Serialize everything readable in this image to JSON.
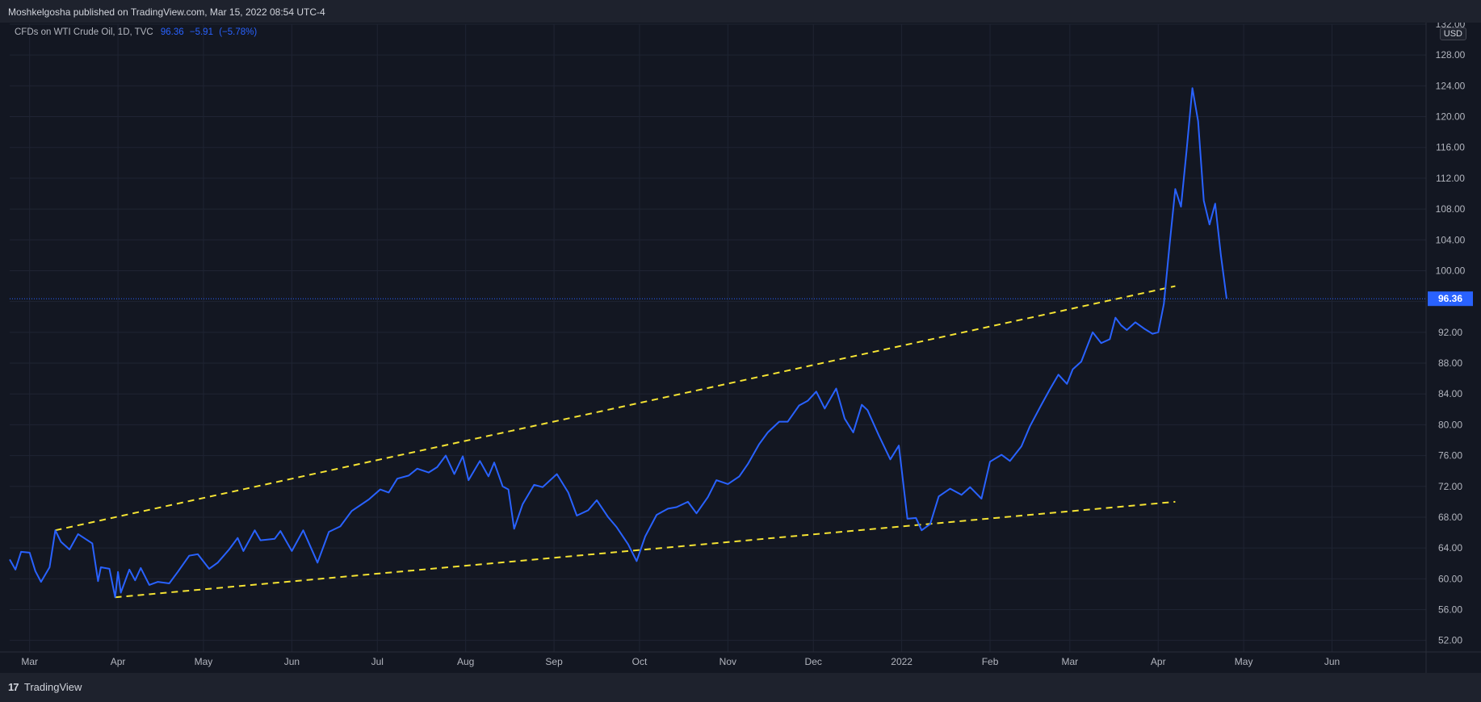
{
  "header": {
    "published_line": "Moshkelgosha published on TradingView.com, Mar 15, 2022 08:54 UTC-4"
  },
  "legend": {
    "symbol": "CFDs on WTI Crude Oil, 1D, TVC",
    "last": "96.36",
    "change": "−5.91",
    "change_pct": "(−5.78%)"
  },
  "currency": "USD",
  "footer": {
    "brand": "TradingView",
    "logo": "17"
  },
  "colors": {
    "line": "#2962ff",
    "trendline": "#f5e333",
    "price_label_bg": "#2962ff"
  },
  "chart_data": {
    "type": "line",
    "title": "CFDs on WTI Crude Oil, 1D, TVC",
    "ylabel": "USD",
    "ylim": [
      50.5,
      132
    ],
    "xlim": [
      "2021-02-22",
      "2022-07-04"
    ],
    "y_ticks": [
      "52.00",
      "56.00",
      "60.00",
      "64.00",
      "68.00",
      "72.00",
      "76.00",
      "80.00",
      "84.00",
      "88.00",
      "92.00",
      "96.00",
      "100.00",
      "104.00",
      "108.00",
      "112.00",
      "116.00",
      "120.00",
      "124.00",
      "128.00",
      "132.00"
    ],
    "x_ticks": [
      {
        "label": "Mar",
        "date": "2021-03-01"
      },
      {
        "label": "Apr",
        "date": "2021-04-01"
      },
      {
        "label": "May",
        "date": "2021-05-01"
      },
      {
        "label": "Jun",
        "date": "2021-06-01"
      },
      {
        "label": "Jul",
        "date": "2021-07-01"
      },
      {
        "label": "Aug",
        "date": "2021-08-01"
      },
      {
        "label": "Sep",
        "date": "2021-09-01"
      },
      {
        "label": "Oct",
        "date": "2021-10-01"
      },
      {
        "label": "Nov",
        "date": "2021-11-01"
      },
      {
        "label": "Dec",
        "date": "2021-12-01"
      },
      {
        "label": "2022",
        "date": "2022-01-01"
      },
      {
        "label": "Feb",
        "date": "2022-02-01"
      },
      {
        "label": "Mar",
        "date": "2022-03-01"
      },
      {
        "label": "Apr",
        "date": "2022-04-01"
      },
      {
        "label": "May",
        "date": "2022-05-01"
      },
      {
        "label": "Jun",
        "date": "2022-06-01"
      }
    ],
    "last_price": 96.36,
    "series": [
      {
        "points": [
          [
            "2021-02-22",
            62.5
          ],
          [
            "2021-02-24",
            61.2
          ],
          [
            "2021-02-26",
            63.5
          ],
          [
            "2021-03-01",
            63.4
          ],
          [
            "2021-03-03",
            61.0
          ],
          [
            "2021-03-05",
            59.6
          ],
          [
            "2021-03-08",
            61.5
          ],
          [
            "2021-03-10",
            66.3
          ],
          [
            "2021-03-12",
            64.8
          ],
          [
            "2021-03-15",
            63.8
          ],
          [
            "2021-03-18",
            65.8
          ],
          [
            "2021-03-23",
            64.6
          ],
          [
            "2021-03-25",
            59.7
          ],
          [
            "2021-03-26",
            61.5
          ],
          [
            "2021-03-29",
            61.3
          ],
          [
            "2021-03-31",
            57.6
          ],
          [
            "2021-04-01",
            60.9
          ],
          [
            "2021-04-02",
            58.2
          ],
          [
            "2021-04-05",
            61.2
          ],
          [
            "2021-04-07",
            59.8
          ],
          [
            "2021-04-09",
            61.4
          ],
          [
            "2021-04-12",
            59.2
          ],
          [
            "2021-04-15",
            59.6
          ],
          [
            "2021-04-19",
            59.4
          ],
          [
            "2021-04-22",
            60.9
          ],
          [
            "2021-04-26",
            63.0
          ],
          [
            "2021-04-29",
            63.2
          ],
          [
            "2021-05-03",
            61.3
          ],
          [
            "2021-05-06",
            62.1
          ],
          [
            "2021-05-10",
            63.8
          ],
          [
            "2021-05-13",
            65.3
          ],
          [
            "2021-05-15",
            63.6
          ],
          [
            "2021-05-19",
            66.3
          ],
          [
            "2021-05-21",
            65.0
          ],
          [
            "2021-05-26",
            65.2
          ],
          [
            "2021-05-28",
            66.2
          ],
          [
            "2021-06-01",
            63.6
          ],
          [
            "2021-06-05",
            66.3
          ],
          [
            "2021-06-10",
            62.1
          ],
          [
            "2021-06-14",
            66.1
          ],
          [
            "2021-06-18",
            66.8
          ],
          [
            "2021-06-22",
            68.8
          ],
          [
            "2021-06-28",
            70.3
          ],
          [
            "2021-07-02",
            71.6
          ],
          [
            "2021-07-05",
            71.2
          ],
          [
            "2021-07-08",
            73.0
          ],
          [
            "2021-07-12",
            73.4
          ],
          [
            "2021-07-15",
            74.3
          ],
          [
            "2021-07-19",
            73.8
          ],
          [
            "2021-07-22",
            74.5
          ],
          [
            "2021-07-25",
            76.0
          ],
          [
            "2021-07-28",
            73.6
          ],
          [
            "2021-07-31",
            75.9
          ],
          [
            "2021-08-02",
            72.8
          ],
          [
            "2021-08-06",
            75.3
          ],
          [
            "2021-08-09",
            73.3
          ],
          [
            "2021-08-11",
            75.1
          ],
          [
            "2021-08-14",
            72.0
          ],
          [
            "2021-08-16",
            71.6
          ],
          [
            "2021-08-18",
            66.5
          ],
          [
            "2021-08-21",
            69.7
          ],
          [
            "2021-08-25",
            72.2
          ],
          [
            "2021-08-28",
            71.9
          ],
          [
            "2021-09-02",
            73.6
          ],
          [
            "2021-09-06",
            71.2
          ],
          [
            "2021-09-09",
            68.2
          ],
          [
            "2021-09-13",
            68.9
          ],
          [
            "2021-09-16",
            70.2
          ],
          [
            "2021-09-20",
            68.0
          ],
          [
            "2021-09-23",
            66.7
          ],
          [
            "2021-09-27",
            64.5
          ],
          [
            "2021-09-30",
            62.3
          ],
          [
            "2021-10-03",
            65.5
          ],
          [
            "2021-10-07",
            68.3
          ],
          [
            "2021-10-11",
            69.1
          ],
          [
            "2021-10-14",
            69.3
          ],
          [
            "2021-10-18",
            70.0
          ],
          [
            "2021-10-21",
            68.5
          ],
          [
            "2021-10-25",
            70.6
          ],
          [
            "2021-10-28",
            72.8
          ],
          [
            "2021-11-01",
            72.3
          ],
          [
            "2021-11-05",
            73.3
          ],
          [
            "2021-11-08",
            74.9
          ],
          [
            "2021-11-12",
            77.5
          ],
          [
            "2021-11-15",
            79.0
          ],
          [
            "2021-11-19",
            80.4
          ],
          [
            "2021-11-22",
            80.4
          ],
          [
            "2021-11-26",
            82.5
          ],
          [
            "2021-11-29",
            83.1
          ],
          [
            "2021-12-02",
            84.3
          ],
          [
            "2021-12-05",
            82.1
          ],
          [
            "2021-12-09",
            84.7
          ],
          [
            "2021-12-12",
            80.8
          ],
          [
            "2021-12-15",
            79.0
          ],
          [
            "2021-12-18",
            82.6
          ],
          [
            "2021-12-20",
            81.9
          ],
          [
            "2021-12-24",
            78.6
          ],
          [
            "2021-12-28",
            75.5
          ],
          [
            "2021-12-31",
            77.3
          ],
          [
            "2022-01-03",
            67.8
          ],
          [
            "2022-01-06",
            67.9
          ],
          [
            "2022-01-08",
            66.3
          ],
          [
            "2022-01-11",
            67.1
          ],
          [
            "2022-01-14",
            70.7
          ],
          [
            "2022-01-18",
            71.7
          ],
          [
            "2022-01-22",
            70.9
          ],
          [
            "2022-01-25",
            71.9
          ],
          [
            "2022-01-29",
            70.4
          ],
          [
            "2022-02-01",
            75.2
          ],
          [
            "2022-02-05",
            76.1
          ],
          [
            "2022-02-08",
            75.3
          ],
          [
            "2022-02-12",
            77.2
          ],
          [
            "2022-02-15",
            79.8
          ],
          [
            "2022-02-19",
            82.6
          ],
          [
            "2022-02-22",
            84.6
          ],
          [
            "2022-02-25",
            86.5
          ],
          [
            "2022-02-28",
            85.3
          ],
          [
            "2022-03-02",
            87.2
          ],
          [
            "2022-03-05",
            88.2
          ],
          [
            "2022-03-09",
            92.0
          ],
          [
            "2022-03-12",
            90.6
          ],
          [
            "2022-03-15",
            91.1
          ],
          [
            "2022-03-17",
            93.9
          ],
          [
            "2022-03-19",
            92.9
          ],
          [
            "2022-03-21",
            92.3
          ],
          [
            "2022-03-24",
            93.3
          ],
          [
            "2022-03-27",
            92.5
          ],
          [
            "2022-03-30",
            91.8
          ],
          [
            "2022-04-01",
            92.0
          ],
          [
            "2022-04-03",
            95.7
          ],
          [
            "2022-04-05",
            103.4
          ],
          [
            "2022-04-07",
            110.6
          ],
          [
            "2022-04-09",
            108.3
          ],
          [
            "2022-04-11",
            115.7
          ],
          [
            "2022-04-13",
            123.7
          ],
          [
            "2022-04-15",
            119.4
          ],
          [
            "2022-04-17",
            109.1
          ],
          [
            "2022-04-19",
            106.0
          ],
          [
            "2022-04-21",
            108.7
          ],
          [
            "2022-04-23",
            102.0
          ],
          [
            "2022-04-25",
            96.36
          ]
        ]
      }
    ],
    "trendlines": [
      {
        "style": "dashed",
        "points": [
          [
            "2021-03-10",
            66.3
          ],
          [
            "2022-04-07",
            98.0
          ]
        ]
      },
      {
        "style": "dashed",
        "points": [
          [
            "2021-03-31",
            57.6
          ],
          [
            "2022-04-07",
            70.0
          ]
        ]
      }
    ]
  }
}
